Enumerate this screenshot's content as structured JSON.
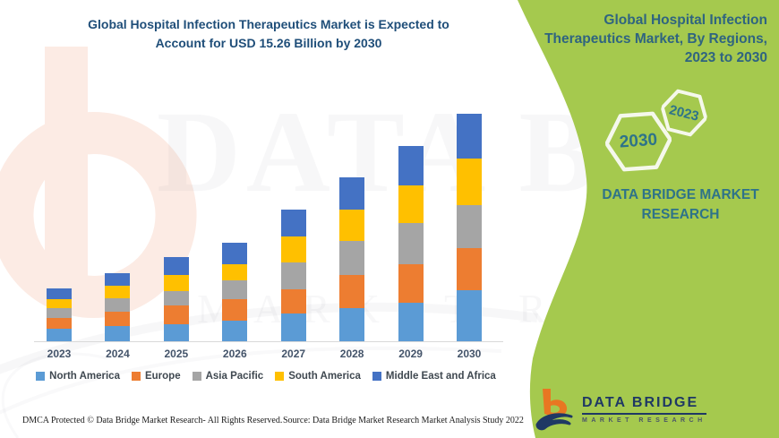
{
  "header": {
    "title_line1": "Global Hospital Infection Therapeutics Market is Expected to",
    "title_line2": "Account for USD 15.26 Billion by 2030"
  },
  "chart_data": {
    "type": "bar",
    "stacked": true,
    "title": "Global Hospital Infection Therapeutics Market is Expected to Account for USD 15.26 Billion by 2030",
    "unit": "USD Billion",
    "categories": [
      "2023",
      "2024",
      "2025",
      "2026",
      "2027",
      "2028",
      "2029",
      "2030"
    ],
    "series": [
      {
        "name": "North America",
        "color": "#5B9BD5",
        "values": [
          0.84,
          1.0,
          1.12,
          1.36,
          1.86,
          2.22,
          2.6,
          3.41
        ]
      },
      {
        "name": "Europe",
        "color": "#ED7D31",
        "values": [
          0.72,
          1.0,
          1.28,
          1.46,
          1.64,
          2.2,
          2.56,
          2.81
        ]
      },
      {
        "name": "Asia Pacific",
        "color": "#A5A5A5",
        "values": [
          0.64,
          0.92,
          0.96,
          1.28,
          1.76,
          2.3,
          2.76,
          2.9
        ]
      },
      {
        "name": "South America",
        "color": "#FFC000",
        "values": [
          0.64,
          0.8,
          1.1,
          1.1,
          1.76,
          2.14,
          2.54,
          3.11
        ]
      },
      {
        "name": "Middle East and Africa",
        "color": "#4472C4",
        "values": [
          0.68,
          0.84,
          1.2,
          1.4,
          1.84,
          2.16,
          2.66,
          3.03
        ]
      }
    ],
    "totals_estimated": [
      3.52,
      4.56,
      5.66,
      6.6,
      8.86,
      11.02,
      13.12,
      15.26
    ],
    "ylim": [
      0,
      15.26
    ],
    "grid": false,
    "y_axis_visible": false,
    "legend_position": "bottom"
  },
  "panel": {
    "bg_color": "#a5c94e",
    "title": "Global Hospital Infection Therapeutics Market, By Regions, 2023 to 2030",
    "hexagons": [
      {
        "label": "2023"
      },
      {
        "label": "2030"
      }
    ],
    "caption_line1": "DATA BRIDGE MARKET",
    "caption_line2": "RESEARCH",
    "logo": {
      "name": "DATA BRIDGE",
      "subtitle": "MARKET RESEARCH"
    }
  },
  "watermark": {
    "line1": "DATA BRIDGE",
    "line2": "MARKET RESEARCH"
  },
  "footer": {
    "left": "DMCA Protected © Data Bridge Market Research- All Rights Reserved.",
    "right": "Source: Data Bridge Market Research Market Analysis Study 2022"
  },
  "layout_colors": {
    "title_text": "#1f4e79",
    "panel_text": "#2e7389",
    "axis_label": "#44546a"
  }
}
